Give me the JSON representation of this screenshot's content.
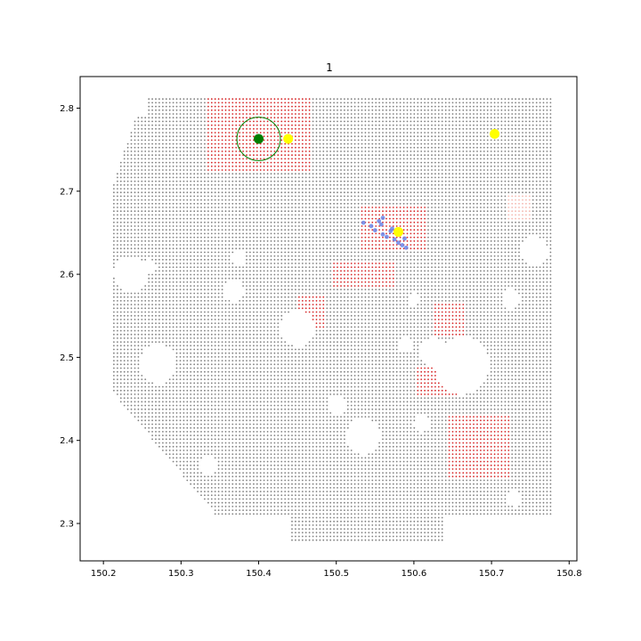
{
  "chart_data": {
    "type": "scatter",
    "title": "1",
    "xlabel": "",
    "ylabel": "",
    "xlim": [
      150.17,
      150.81
    ],
    "ylim": [
      2.255,
      2.838
    ],
    "xticks": [
      150.2,
      150.3,
      150.4,
      150.5,
      150.6,
      150.7,
      150.8
    ],
    "xtick_labels": [
      "150.2",
      "150.3",
      "150.4",
      "150.5",
      "150.6",
      "150.7",
      "150.8"
    ],
    "yticks": [
      2.3,
      2.4,
      2.5,
      2.6,
      2.7,
      2.8
    ],
    "ytick_labels": [
      "2.3",
      "2.4",
      "2.5",
      "2.6",
      "2.7",
      "2.8"
    ],
    "grid": false,
    "background_grid": {
      "color": "#808080",
      "x_range": [
        150.2,
        150.78
      ],
      "y_range": [
        2.28,
        2.812
      ],
      "spacing": 0.0045
    },
    "red_regions": {
      "color": "#d62728",
      "clusters": [
        {
          "x": [
            150.335,
            150.47
          ],
          "y": [
            2.725,
            2.812
          ]
        },
        {
          "x": [
            150.53,
            150.615
          ],
          "y": [
            2.63,
            2.685
          ]
        },
        {
          "x": [
            150.495,
            150.575
          ],
          "y": [
            2.585,
            2.615
          ]
        },
        {
          "x": [
            150.45,
            150.485
          ],
          "y": [
            2.535,
            2.575
          ]
        },
        {
          "x": [
            150.625,
            150.665
          ],
          "y": [
            2.525,
            2.565
          ]
        },
        {
          "x": [
            150.605,
            150.665
          ],
          "y": [
            2.455,
            2.49
          ]
        },
        {
          "x": [
            150.645,
            150.725
          ],
          "y": [
            2.355,
            2.43
          ]
        }
      ]
    },
    "pink_region": {
      "color": "#f4b8b0",
      "x": [
        150.72,
        150.75
      ],
      "y": [
        2.665,
        2.695
      ]
    },
    "blue_points": {
      "color": "#6a85e8",
      "points": [
        [
          150.535,
          2.662
        ],
        [
          150.545,
          2.658
        ],
        [
          150.55,
          2.653
        ],
        [
          150.558,
          2.66
        ],
        [
          150.56,
          2.648
        ],
        [
          150.565,
          2.645
        ],
        [
          150.57,
          2.652
        ],
        [
          150.575,
          2.642
        ],
        [
          150.58,
          2.638
        ],
        [
          150.585,
          2.635
        ],
        [
          150.588,
          2.643
        ],
        [
          150.59,
          2.632
        ],
        [
          150.555,
          2.664
        ],
        [
          150.56,
          2.668
        ],
        [
          150.572,
          2.655
        ]
      ]
    },
    "yellow_markers": {
      "color": "#ffff00",
      "points": [
        [
          150.438,
          2.763
        ],
        [
          150.58,
          2.651
        ],
        [
          150.704,
          2.769
        ]
      ]
    },
    "green_marker": {
      "color": "#007f00",
      "point": [
        150.4,
        2.763
      ]
    },
    "green_circle": {
      "color": "#007f00",
      "center": [
        150.4,
        2.763
      ],
      "radius_x_units": 0.028
    }
  }
}
